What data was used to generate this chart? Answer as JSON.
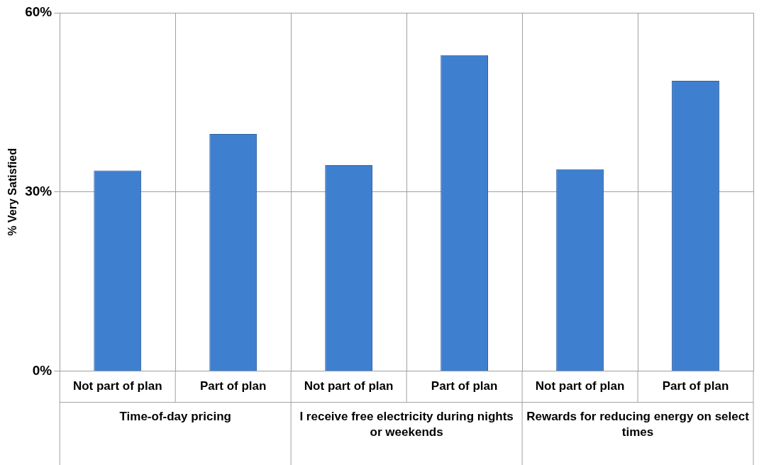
{
  "chart_data": {
    "type": "bar",
    "ylabel": "% Very Satisfied",
    "categories": [
      "Not part of plan",
      "Part of plan",
      "Not part of plan",
      "Part of plan",
      "Not part of plan",
      "Part of plan"
    ],
    "values": [
      33.6,
      39.7,
      34.5,
      52.9,
      33.8,
      48.6
    ],
    "color": "#3f7fd0",
    "ylim": [
      0,
      60
    ],
    "yticks": [
      {
        "value": 0,
        "label": "0%"
      },
      {
        "value": 30,
        "label": "30%"
      },
      {
        "value": 60,
        "label": "60%"
      }
    ],
    "grid": true,
    "annotations": [
      "Time-of-day pricing",
      "I receive free electricity during nights or weekends",
      "Rewards for reducing energy on select times"
    ]
  }
}
